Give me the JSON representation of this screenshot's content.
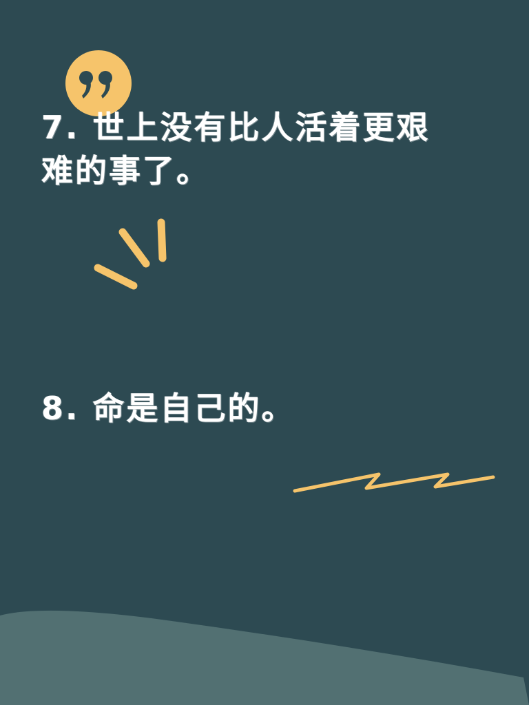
{
  "colors": {
    "background": "#2d4a52",
    "accent": "#f6c46b",
    "text": "#ffffff",
    "wave": "#527072"
  },
  "icons": {
    "quote": "quote-mark-icon",
    "sparkle": "sparkle-lines-icon",
    "zigzag": "zigzag-line-icon"
  },
  "quotes": [
    {
      "lines": [
        "7. 世上没有比人活着更艰",
        "难的事了。"
      ]
    },
    {
      "lines": [
        "8. 命是自己的。"
      ]
    }
  ]
}
